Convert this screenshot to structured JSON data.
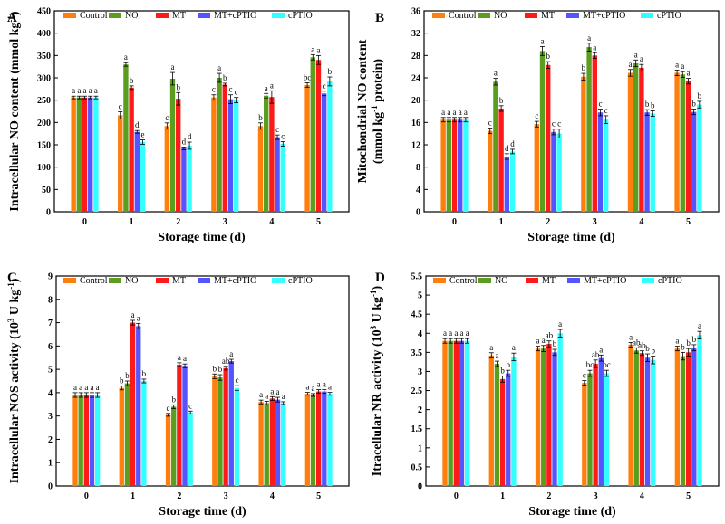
{
  "categories": [
    "0",
    "1",
    "2",
    "3",
    "4",
    "5"
  ],
  "series_names": [
    "Control",
    "NO",
    "MT",
    "MT+cPTIO",
    "cPTIO"
  ],
  "colors": {
    "Control": "#ff7f0e",
    "NO": "#5b9e1f",
    "MT": "#ff1a1a",
    "MT+cPTIO": "#5555ff",
    "cPTIO": "#33ffff"
  },
  "chart_data": [
    {
      "panel": "A",
      "type": "bar",
      "xlabel": "Storage time (d)",
      "ylabel_lines": [
        "Intracellular NO content (mmol kg",
        "-1",
        ")"
      ],
      "ylim": [
        0,
        450
      ],
      "yticks": [
        0,
        50,
        100,
        150,
        200,
        250,
        300,
        350,
        400,
        450
      ],
      "categories": [
        "0",
        "1",
        "2",
        "3",
        "4",
        "5"
      ],
      "series": [
        {
          "name": "Control",
          "values": [
            256,
            216,
            192,
            256,
            192,
            284
          ],
          "errors": [
            3,
            8,
            7,
            6,
            7,
            5
          ],
          "letters": [
            "a",
            "c",
            "c",
            "c",
            "b",
            "bc"
          ]
        },
        {
          "name": "NO",
          "values": [
            256,
            330,
            298,
            300,
            260,
            346
          ],
          "errors": [
            3,
            4,
            14,
            10,
            5,
            6
          ],
          "letters": [
            "a",
            "a",
            "a",
            "a",
            "a",
            "a"
          ]
        },
        {
          "name": "MT",
          "values": [
            256,
            278,
            253,
            285,
            257,
            340
          ],
          "errors": [
            3,
            4,
            14,
            3,
            14,
            10
          ],
          "letters": [
            "a",
            "b",
            "b",
            "b",
            "a",
            "a"
          ]
        },
        {
          "name": "MT+cPTIO",
          "values": [
            256,
            179,
            142,
            252,
            167,
            265
          ],
          "errors": [
            3,
            3,
            3,
            10,
            5,
            5
          ],
          "letters": [
            "a",
            "d",
            "d",
            "c",
            "c",
            "c"
          ]
        },
        {
          "name": "cPTIO",
          "values": [
            256,
            156,
            148,
            250,
            152,
            292
          ],
          "errors": [
            3,
            5,
            8,
            6,
            5,
            10
          ],
          "letters": [
            "a",
            "e",
            "d",
            "c",
            "c",
            "b"
          ]
        }
      ]
    },
    {
      "panel": "B",
      "type": "bar",
      "xlabel": "Storage time (d)",
      "ylabel_lines": [
        "Mitochondrial NO content",
        "(mmol kg",
        "-1",
        " protein)"
      ],
      "ylim": [
        0,
        36
      ],
      "yticks": [
        0,
        4,
        8,
        12,
        16,
        20,
        24,
        28,
        32,
        36
      ],
      "categories": [
        "0",
        "1",
        "2",
        "3",
        "4",
        "5"
      ],
      "series": [
        {
          "name": "Control",
          "values": [
            16.5,
            14.5,
            15.7,
            24.2,
            24.9,
            24.9
          ],
          "errors": [
            0.4,
            0.5,
            0.5,
            0.6,
            0.6,
            0.5
          ],
          "letters": [
            "a",
            "c",
            "c",
            "b",
            "a",
            "a"
          ]
        },
        {
          "name": "NO",
          "values": [
            16.5,
            23.3,
            28.8,
            29.5,
            26.6,
            24.6
          ],
          "errors": [
            0.4,
            0.6,
            0.8,
            0.7,
            0.6,
            0.5
          ],
          "letters": [
            "a",
            "a",
            "a",
            "a",
            "a",
            "a"
          ]
        },
        {
          "name": "MT",
          "values": [
            16.5,
            18.5,
            26.3,
            28.0,
            25.8,
            23.4
          ],
          "errors": [
            0.4,
            0.5,
            0.6,
            0.5,
            0.6,
            0.5
          ],
          "letters": [
            "a",
            "b",
            "b",
            "a",
            "a",
            "a"
          ]
        },
        {
          "name": "MT+cPTIO",
          "values": [
            16.5,
            9.9,
            14.3,
            17.8,
            17.8,
            17.9
          ],
          "errors": [
            0.4,
            0.5,
            0.5,
            0.6,
            0.5,
            0.5
          ],
          "letters": [
            "a",
            "d",
            "c",
            "c",
            "b",
            "b"
          ]
        },
        {
          "name": "cPTIO",
          "values": [
            16.5,
            10.8,
            14.0,
            16.5,
            17.6,
            19.2
          ],
          "errors": [
            0.4,
            0.4,
            0.8,
            0.7,
            0.5,
            0.6
          ],
          "letters": [
            "a",
            "d",
            "c",
            "c",
            "b",
            "b"
          ]
        }
      ]
    },
    {
      "panel": "C",
      "type": "bar",
      "xlabel": "Storage time (d)",
      "ylabel_lines": [
        "Intracellular NOS activity (10",
        "3",
        " U kg",
        "-1",
        ")"
      ],
      "ylim": [
        0,
        9
      ],
      "yticks": [
        0,
        1,
        2,
        3,
        4,
        5,
        6,
        7,
        8,
        9
      ],
      "categories": [
        "0",
        "1",
        "2",
        "3",
        "4",
        "5"
      ],
      "series": [
        {
          "name": "Control",
          "values": [
            3.9,
            4.2,
            3.05,
            4.7,
            3.6,
            3.95
          ],
          "errors": [
            0.1,
            0.08,
            0.06,
            0.1,
            0.08,
            0.06
          ],
          "letters": [
            "a",
            "b",
            "c",
            "b",
            "a",
            "a"
          ]
        },
        {
          "name": "NO",
          "values": [
            3.9,
            4.4,
            3.4,
            4.65,
            3.55,
            3.9
          ],
          "errors": [
            0.1,
            0.1,
            0.08,
            0.12,
            0.08,
            0.06
          ],
          "letters": [
            "a",
            "b",
            "b",
            "b",
            "a",
            "a"
          ]
        },
        {
          "name": "MT",
          "values": [
            3.9,
            7.0,
            5.2,
            5.05,
            3.75,
            4.05
          ],
          "errors": [
            0.1,
            0.1,
            0.08,
            0.08,
            0.08,
            0.08
          ],
          "letters": [
            "a",
            "a",
            "a",
            "ab",
            "a",
            "a"
          ]
        },
        {
          "name": "MT+cPTIO",
          "values": [
            3.9,
            6.85,
            5.15,
            5.35,
            3.7,
            4.05
          ],
          "errors": [
            0.1,
            0.12,
            0.08,
            0.08,
            0.1,
            0.08
          ],
          "letters": [
            "a",
            "a",
            "a",
            "a",
            "a",
            "a"
          ]
        },
        {
          "name": "cPTIO",
          "values": [
            3.9,
            4.5,
            3.15,
            4.2,
            3.55,
            3.95
          ],
          "errors": [
            0.1,
            0.08,
            0.06,
            0.1,
            0.06,
            0.06
          ],
          "letters": [
            "a",
            "b",
            "c",
            "c",
            "a",
            "a"
          ]
        }
      ]
    },
    {
      "panel": "D",
      "type": "bar",
      "xlabel": "Storage time (d)",
      "ylabel_lines": [
        "Itracellular NR activity (10",
        "3",
        " U kg",
        "-1",
        ")"
      ],
      "ylim": [
        0,
        5.5
      ],
      "yticks": [
        0,
        0.5,
        1,
        1.5,
        2,
        2.5,
        3,
        3.5,
        4,
        4.5,
        5,
        5.5
      ],
      "categories": [
        "0",
        "1",
        "2",
        "3",
        "4",
        "5"
      ],
      "series": [
        {
          "name": "Control",
          "values": [
            3.8,
            3.42,
            3.6,
            2.7,
            3.7,
            3.6
          ],
          "errors": [
            0.06,
            0.07,
            0.06,
            0.06,
            0.06,
            0.06
          ],
          "letters": [
            "a",
            "a",
            "a",
            "c",
            "a",
            "a"
          ]
        },
        {
          "name": "NO",
          "values": [
            3.8,
            3.2,
            3.6,
            2.95,
            3.55,
            3.4
          ],
          "errors": [
            0.06,
            0.07,
            0.08,
            0.08,
            0.07,
            0.1
          ],
          "letters": [
            "a",
            "a",
            "a",
            "bc",
            "ab",
            "b"
          ]
        },
        {
          "name": "MT",
          "values": [
            3.8,
            2.8,
            3.72,
            3.2,
            3.48,
            3.5
          ],
          "errors": [
            0.06,
            0.08,
            0.08,
            0.1,
            0.06,
            0.1
          ],
          "letters": [
            "a",
            "b",
            "ab",
            "ab",
            "ab",
            "b"
          ]
        },
        {
          "name": "MT+cPTIO",
          "values": [
            3.8,
            2.95,
            3.5,
            3.35,
            3.36,
            3.62
          ],
          "errors": [
            0.06,
            0.08,
            0.08,
            0.08,
            0.1,
            0.08
          ],
          "letters": [
            "a",
            "b",
            "b",
            "a",
            "b",
            "b"
          ]
        },
        {
          "name": "cPTIO",
          "values": [
            3.8,
            3.38,
            4.0,
            2.95,
            3.3,
            3.95
          ],
          "errors": [
            0.06,
            0.1,
            0.1,
            0.08,
            0.1,
            0.1
          ],
          "letters": [
            "a",
            "a",
            "a",
            "bc",
            "b",
            "a"
          ]
        }
      ]
    }
  ]
}
